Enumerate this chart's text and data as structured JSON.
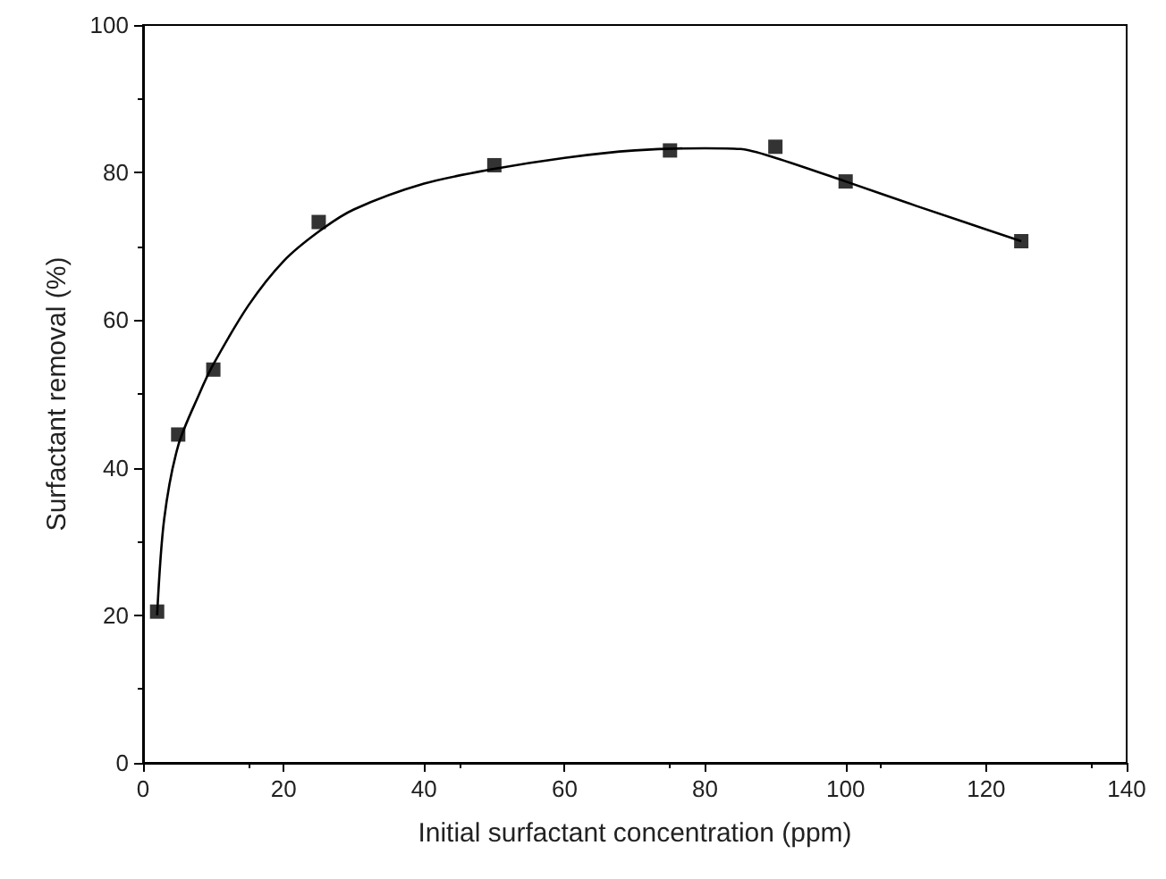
{
  "chart_data": {
    "type": "scatter",
    "xlabel": "Initial surfactant concentration (ppm)",
    "ylabel": "Surfactant removal (%)",
    "xlim": [
      0,
      140
    ],
    "xticks": [
      0,
      20,
      40,
      60,
      80,
      100,
      120,
      140
    ],
    "ylim": [
      0,
      100
    ],
    "yticks": [
      0,
      20,
      40,
      60,
      80,
      100
    ],
    "grid": false,
    "series": [
      {
        "marker": "square",
        "color": "#000000",
        "x": [
          2,
          5,
          10,
          25,
          50,
          75,
          90,
          100,
          125
        ],
        "values": [
          20.5,
          44.5,
          53.3,
          73.3,
          81,
          83,
          83.5,
          78.8,
          70.7
        ]
      },
      {
        "type": "line",
        "marker": "none",
        "line_style": "solid",
        "color": "#000000",
        "x": [
          2,
          3,
          5,
          8,
          10,
          15,
          20,
          25,
          30,
          40,
          50,
          60,
          70,
          80,
          85,
          90,
          100,
          110,
          125
        ],
        "values": [
          20,
          33,
          43,
          50,
          54,
          62,
          68,
          72,
          75,
          78.5,
          80.5,
          82,
          83,
          83.3,
          83.2,
          82,
          78.8,
          75.5,
          70.7
        ]
      }
    ]
  }
}
